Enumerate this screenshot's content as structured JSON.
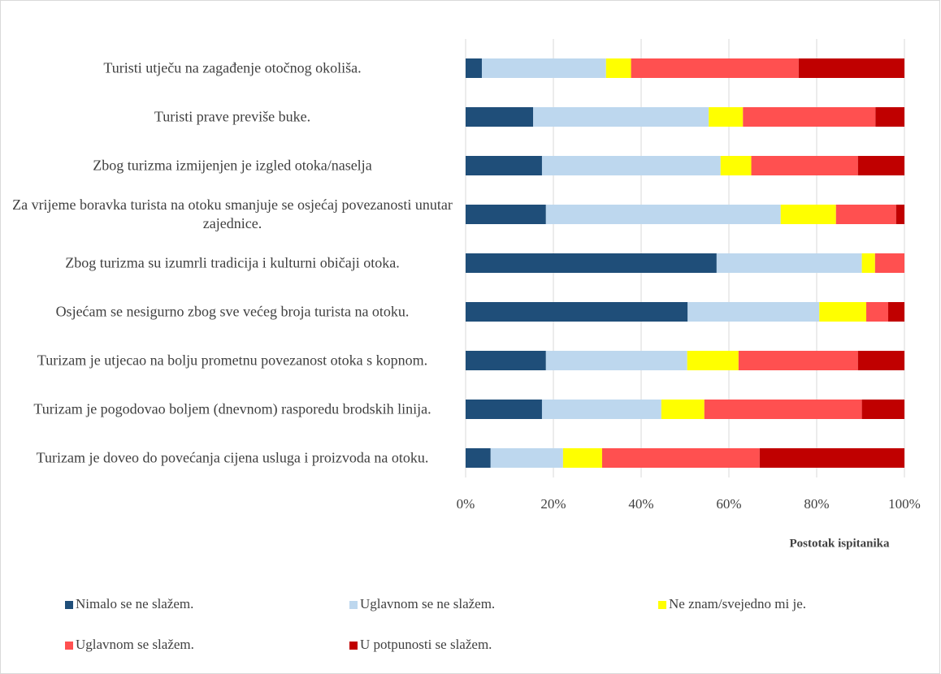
{
  "chart_data": {
    "type": "stacked-bar-horizontal",
    "categories": [
      "Turisti utječu na zagađenje otočnog okoliša.",
      "Turisti prave previše buke.",
      "Zbog turizma izmijenjen je izgled otoka/naselja",
      "Za vrijeme boravka turista na otoku smanjuje se osjećaj povezanosti unutar zajednice.",
      "Zbog turizma su izumrli tradicija i kulturni običaji otoka.",
      "Osjećam se nesigurno zbog sve većeg broja turista na otoku.",
      "Turizam je utjecao na bolju prometnu povezanost otoka s kopnom.",
      "Turizam je pogodovao boljem (dnevnom) rasporedu brodskih linija.",
      "Turizam je doveo do povećanja cijena usluga i proizvoda na otoku."
    ],
    "series": [
      {
        "name": "Nimalo se ne slažem.",
        "color": "#1f4e79",
        "values": [
          3.7,
          15.4,
          17.4,
          18.3,
          57.2,
          50.6,
          18.3,
          17.4,
          5.7
        ]
      },
      {
        "name": "Uglavnom se ne slažem.",
        "color": "#bdd7ee",
        "values": [
          28.3,
          40.0,
          40.7,
          53.5,
          33.1,
          30.0,
          32.2,
          27.2,
          16.5
        ]
      },
      {
        "name": "Ne znam/svejedno mi je.",
        "color": "#ffff00",
        "values": [
          5.7,
          7.8,
          7.0,
          12.6,
          3.0,
          10.7,
          11.7,
          9.8,
          8.9
        ]
      },
      {
        "name": "Uglavnom se slažem.",
        "color": "#ff5050",
        "values": [
          38.2,
          30.2,
          24.3,
          13.7,
          6.7,
          5.0,
          27.2,
          35.9,
          35.9
        ]
      },
      {
        "name": "U potpunosti se slažem.",
        "color": "#c00000",
        "values": [
          24.1,
          6.6,
          10.6,
          1.9,
          0,
          3.7,
          10.6,
          9.7,
          33.0
        ]
      }
    ],
    "xlim": [
      0,
      100
    ],
    "xticks": [
      {
        "value": 0,
        "label": "0%"
      },
      {
        "value": 20,
        "label": "20%"
      },
      {
        "value": 40,
        "label": "40%"
      },
      {
        "value": 60,
        "label": "60%"
      },
      {
        "value": 80,
        "label": "80%"
      },
      {
        "value": 100,
        "label": "100%"
      }
    ],
    "x_label": "Postotak ispitanika",
    "grid": true
  }
}
